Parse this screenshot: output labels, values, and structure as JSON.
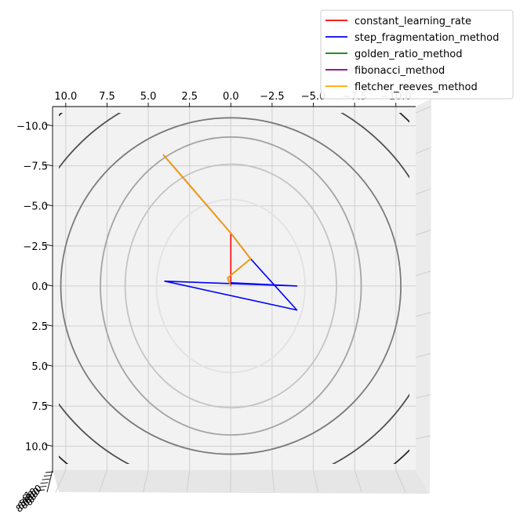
{
  "chart_data": {
    "type": "line",
    "view": "3d surface seen from directly above (contour projection)",
    "xlim": [
      10.8,
      -11.2
    ],
    "ylim": [
      -11.2,
      11.5
    ],
    "x_ticks": [
      "10.0",
      "7.5",
      "5.0",
      "2.5",
      "0.0",
      "−2.5",
      "−5.0",
      "−7.5",
      "−10.0"
    ],
    "x_tick_values": [
      10,
      7.5,
      5,
      2.5,
      0,
      -2.5,
      -5,
      -7.5,
      -10
    ],
    "y_ticks": [
      "−10.0",
      "−7.5",
      "−5.0",
      "−2.5",
      "0.0",
      "2.5",
      "5.0",
      "7.5",
      "10.0"
    ],
    "y_tick_values": [
      -10,
      -7.5,
      -5,
      -2.5,
      0,
      2.5,
      5,
      7.5,
      10
    ],
    "z_ticks": [
      "100",
      "200",
      "400",
      "500",
      "600",
      "800"
    ],
    "grid": true,
    "legend_position": "top-right",
    "contours": [
      {
        "rx": 4.5,
        "ry": 5.4,
        "color": "#e2e2e2"
      },
      {
        "rx": 6.4,
        "ry": 7.6,
        "color": "#c4c4c4"
      },
      {
        "rx": 7.9,
        "ry": 9.3,
        "color": "#a4a4a4"
      },
      {
        "rx": 10.3,
        "ry": 10.5,
        "color": "#7a7a7a",
        "clip": true
      },
      {
        "rx": 12.8,
        "ry": 12.7,
        "color": "#4e4e4e",
        "clip": true
      },
      {
        "rx": 15.0,
        "ry": 14.8,
        "color": "#262626",
        "clip": true
      }
    ],
    "series": [
      {
        "name": "constant_learning_rate",
        "color": "#ff0000",
        "x": [
          4.1,
          2.5,
          0.0,
          0.0,
          0.0
        ],
        "y": [
          -8.2,
          -6.3,
          -3.3,
          -1.6,
          0.0
        ]
      },
      {
        "name": "step_fragmentation_method",
        "color": "#0000ff",
        "x": [
          0.0,
          -1.2,
          -4.0,
          4.0,
          -4.0,
          0.0
        ],
        "y": [
          -3.3,
          -1.7,
          1.5,
          -0.3,
          0.0,
          -0.2
        ]
      },
      {
        "name": "golden_ratio_method",
        "color": "#008000",
        "x": [
          4.1,
          0.0,
          -1.2,
          0.2,
          0.0
        ],
        "y": [
          -8.2,
          -3.3,
          -1.7,
          -0.5,
          0.0
        ]
      },
      {
        "name": "fibonacci_method",
        "color": "#800080",
        "x": [
          4.1,
          0.0,
          -1.2,
          0.2,
          0.0
        ],
        "y": [
          -8.2,
          -3.3,
          -1.7,
          -0.5,
          0.0
        ]
      },
      {
        "name": "fletcher_reeves_method",
        "color": "#ffa500",
        "x": [
          4.1,
          0.0,
          -1.2,
          0.2,
          0.0
        ],
        "y": [
          -8.2,
          -3.3,
          -1.7,
          -0.5,
          0.0
        ]
      }
    ]
  }
}
